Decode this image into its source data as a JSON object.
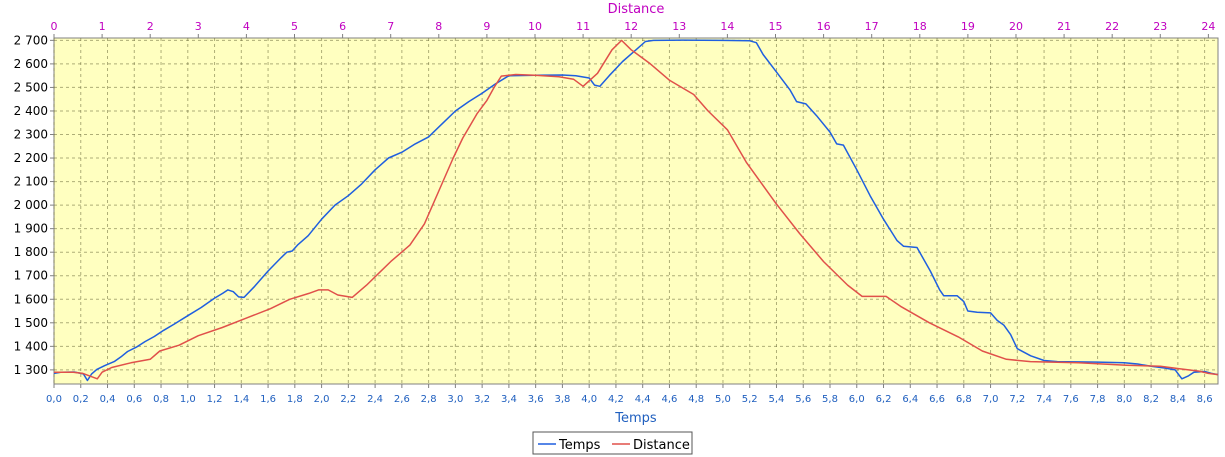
{
  "chart_data": {
    "type": "line",
    "xlabel": "Temps",
    "x2label": "Distance",
    "xlim": [
      0.0,
      8.7
    ],
    "x2lim": [
      0,
      24.2
    ],
    "ylim": [
      1240,
      2710
    ],
    "x_ticks": [
      "0,0",
      "0,2",
      "0,4",
      "0,6",
      "0,8",
      "1,0",
      "1,2",
      "1,4",
      "1,6",
      "1,8",
      "2,0",
      "2,2",
      "2,4",
      "2,6",
      "2,8",
      "3,0",
      "3,2",
      "3,4",
      "3,6",
      "3,8",
      "4,0",
      "4,2",
      "4,4",
      "4,6",
      "4,8",
      "5,0",
      "5,2",
      "5,4",
      "5,6",
      "5,8",
      "6,0",
      "6,2",
      "6,4",
      "6,6",
      "6,8",
      "7,0",
      "7,2",
      "7,4",
      "7,6",
      "7,8",
      "8,0",
      "8,2",
      "8,4",
      "8,6"
    ],
    "x2_ticks": [
      "0",
      "1",
      "2",
      "3",
      "4",
      "5",
      "6",
      "7",
      "8",
      "9",
      "10",
      "11",
      "12",
      "13",
      "14",
      "15",
      "16",
      "17",
      "18",
      "19",
      "20",
      "21",
      "22",
      "23",
      "24"
    ],
    "y_ticks": [
      "1 300",
      "1 400",
      "1 500",
      "1 600",
      "1 700",
      "1 800",
      "1 900",
      "2 000",
      "2 100",
      "2 200",
      "2 300",
      "2 400",
      "2 500",
      "2 600",
      "2 700"
    ],
    "grid": true,
    "legend_position": "bottom-center",
    "series": [
      {
        "name": "Temps",
        "color": "#1f5fdf",
        "axis": "x",
        "points": [
          [
            0.0,
            1285
          ],
          [
            0.05,
            1290
          ],
          [
            0.15,
            1291
          ],
          [
            0.22,
            1283
          ],
          [
            0.25,
            1255
          ],
          [
            0.28,
            1282
          ],
          [
            0.32,
            1302
          ],
          [
            0.38,
            1318
          ],
          [
            0.45,
            1335
          ],
          [
            0.5,
            1355
          ],
          [
            0.55,
            1378
          ],
          [
            0.62,
            1398
          ],
          [
            0.68,
            1420
          ],
          [
            0.75,
            1442
          ],
          [
            0.82,
            1468
          ],
          [
            0.9,
            1495
          ],
          [
            1.0,
            1530
          ],
          [
            1.1,
            1565
          ],
          [
            1.2,
            1605
          ],
          [
            1.26,
            1625
          ],
          [
            1.3,
            1640
          ],
          [
            1.34,
            1632
          ],
          [
            1.38,
            1610
          ],
          [
            1.42,
            1608
          ],
          [
            1.5,
            1655
          ],
          [
            1.6,
            1720
          ],
          [
            1.7,
            1778
          ],
          [
            1.74,
            1800
          ],
          [
            1.78,
            1805
          ],
          [
            1.82,
            1830
          ],
          [
            1.9,
            1870
          ],
          [
            2.0,
            1940
          ],
          [
            2.1,
            2000
          ],
          [
            2.2,
            2040
          ],
          [
            2.3,
            2090
          ],
          [
            2.4,
            2150
          ],
          [
            2.5,
            2200
          ],
          [
            2.6,
            2225
          ],
          [
            2.7,
            2260
          ],
          [
            2.8,
            2290
          ],
          [
            2.9,
            2345
          ],
          [
            3.0,
            2400
          ],
          [
            3.1,
            2440
          ],
          [
            3.2,
            2475
          ],
          [
            3.3,
            2515
          ],
          [
            3.4,
            2550
          ],
          [
            3.6,
            2552
          ],
          [
            3.8,
            2553
          ],
          [
            3.9,
            2550
          ],
          [
            4.0,
            2540
          ],
          [
            4.04,
            2510
          ],
          [
            4.08,
            2505
          ],
          [
            4.15,
            2550
          ],
          [
            4.25,
            2610
          ],
          [
            4.35,
            2660
          ],
          [
            4.42,
            2695
          ],
          [
            4.48,
            2700
          ],
          [
            4.7,
            2701
          ],
          [
            5.0,
            2700
          ],
          [
            5.2,
            2698
          ],
          [
            5.25,
            2690
          ],
          [
            5.3,
            2640
          ],
          [
            5.4,
            2565
          ],
          [
            5.5,
            2490
          ],
          [
            5.55,
            2440
          ],
          [
            5.62,
            2430
          ],
          [
            5.7,
            2380
          ],
          [
            5.8,
            2310
          ],
          [
            5.85,
            2260
          ],
          [
            5.9,
            2255
          ],
          [
            6.0,
            2150
          ],
          [
            6.1,
            2040
          ],
          [
            6.2,
            1940
          ],
          [
            6.3,
            1850
          ],
          [
            6.35,
            1825
          ],
          [
            6.45,
            1820
          ],
          [
            6.55,
            1720
          ],
          [
            6.62,
            1640
          ],
          [
            6.65,
            1615
          ],
          [
            6.75,
            1615
          ],
          [
            6.8,
            1590
          ],
          [
            6.83,
            1550
          ],
          [
            6.9,
            1545
          ],
          [
            7.0,
            1542
          ],
          [
            7.05,
            1510
          ],
          [
            7.1,
            1490
          ],
          [
            7.15,
            1450
          ],
          [
            7.2,
            1390
          ],
          [
            7.3,
            1360
          ],
          [
            7.4,
            1340
          ],
          [
            7.5,
            1335
          ],
          [
            7.8,
            1333
          ],
          [
            8.0,
            1330
          ],
          [
            8.1,
            1325
          ],
          [
            8.2,
            1315
          ],
          [
            8.3,
            1308
          ],
          [
            8.38,
            1300
          ],
          [
            8.43,
            1262
          ],
          [
            8.48,
            1275
          ],
          [
            8.52,
            1290
          ],
          [
            8.6,
            1293
          ],
          [
            8.65,
            1285
          ],
          [
            8.7,
            1280
          ]
        ]
      },
      {
        "name": "Distance",
        "color": "#e0504a",
        "axis": "x2",
        "points": [
          [
            0.0,
            1290
          ],
          [
            0.4,
            1290
          ],
          [
            0.6,
            1285
          ],
          [
            0.9,
            1262
          ],
          [
            1.0,
            1290
          ],
          [
            1.2,
            1310
          ],
          [
            1.6,
            1330
          ],
          [
            2.0,
            1345
          ],
          [
            2.2,
            1380
          ],
          [
            2.6,
            1405
          ],
          [
            3.0,
            1445
          ],
          [
            3.5,
            1480
          ],
          [
            4.0,
            1520
          ],
          [
            4.5,
            1560
          ],
          [
            4.9,
            1600
          ],
          [
            5.3,
            1625
          ],
          [
            5.5,
            1640
          ],
          [
            5.7,
            1640
          ],
          [
            5.9,
            1618
          ],
          [
            6.2,
            1608
          ],
          [
            6.5,
            1660
          ],
          [
            7.0,
            1760
          ],
          [
            7.4,
            1830
          ],
          [
            7.7,
            1920
          ],
          [
            8.0,
            2060
          ],
          [
            8.3,
            2200
          ],
          [
            8.5,
            2285
          ],
          [
            8.8,
            2390
          ],
          [
            9.0,
            2445
          ],
          [
            9.15,
            2500
          ],
          [
            9.3,
            2548
          ],
          [
            9.6,
            2555
          ],
          [
            10.0,
            2552
          ],
          [
            10.5,
            2545
          ],
          [
            10.8,
            2535
          ],
          [
            11.0,
            2505
          ],
          [
            11.3,
            2560
          ],
          [
            11.6,
            2660
          ],
          [
            11.8,
            2700
          ],
          [
            12.0,
            2660
          ],
          [
            12.4,
            2600
          ],
          [
            12.8,
            2530
          ],
          [
            13.3,
            2470
          ],
          [
            13.6,
            2400
          ],
          [
            14.0,
            2320
          ],
          [
            14.4,
            2180
          ],
          [
            15.0,
            2010
          ],
          [
            15.5,
            1880
          ],
          [
            16.0,
            1760
          ],
          [
            16.5,
            1660
          ],
          [
            16.8,
            1612
          ],
          [
            17.3,
            1612
          ],
          [
            17.6,
            1570
          ],
          [
            18.2,
            1500
          ],
          [
            18.8,
            1440
          ],
          [
            19.3,
            1380
          ],
          [
            19.8,
            1345
          ],
          [
            20.3,
            1335
          ],
          [
            21.3,
            1330
          ],
          [
            22.3,
            1320
          ],
          [
            23.0,
            1315
          ],
          [
            23.4,
            1305
          ],
          [
            23.8,
            1295
          ],
          [
            24.0,
            1285
          ],
          [
            24.2,
            1280
          ]
        ]
      }
    ]
  }
}
